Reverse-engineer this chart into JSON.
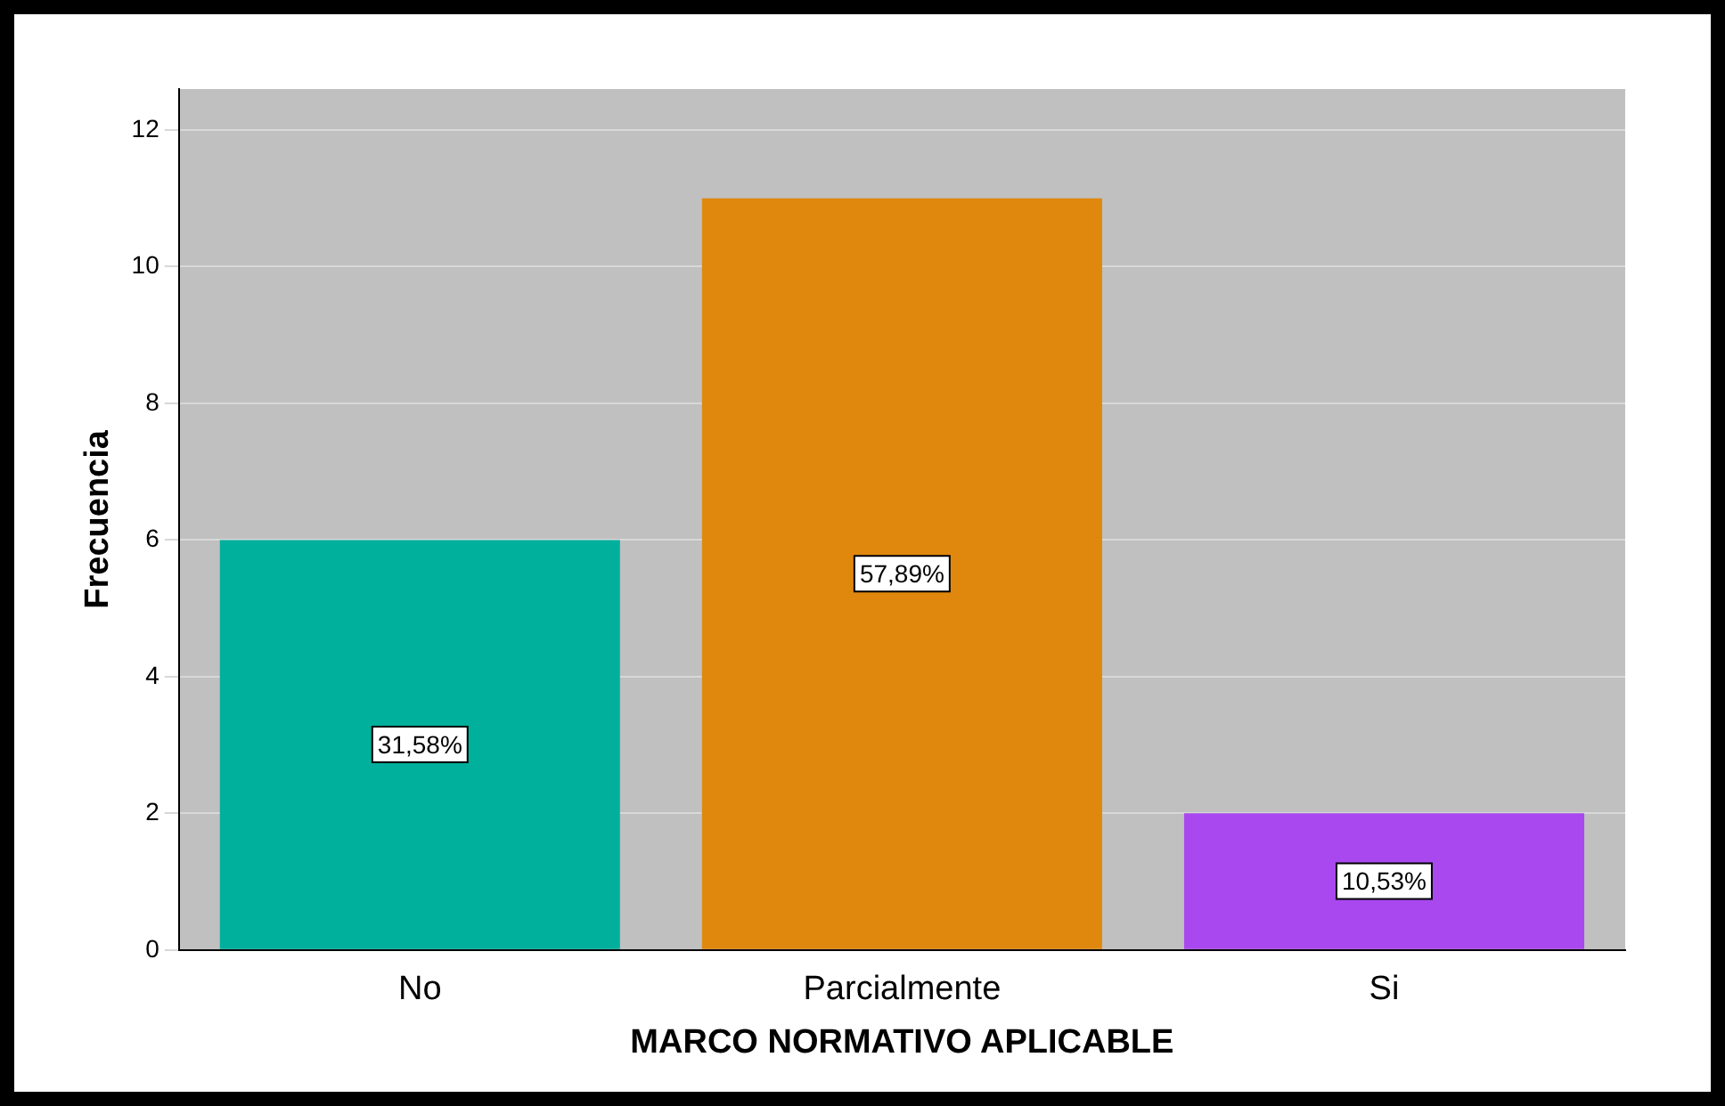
{
  "chart_data": {
    "type": "bar",
    "xlabel": "MARCO NORMATIVO APLICABLE",
    "ylabel": "Frecuencia",
    "categories": [
      "No",
      "Parcialmente",
      "Si"
    ],
    "values": [
      6,
      11,
      2
    ],
    "colors": [
      "#00b09c",
      "#e0880e",
      "#a948ee"
    ],
    "annotations": [
      "31,58%",
      "57,89%",
      "10,53%"
    ],
    "ylim": [
      0,
      12.6
    ],
    "yticks": [
      0,
      2,
      4,
      6,
      8,
      10,
      12
    ],
    "grid": "y",
    "legend": false
  }
}
